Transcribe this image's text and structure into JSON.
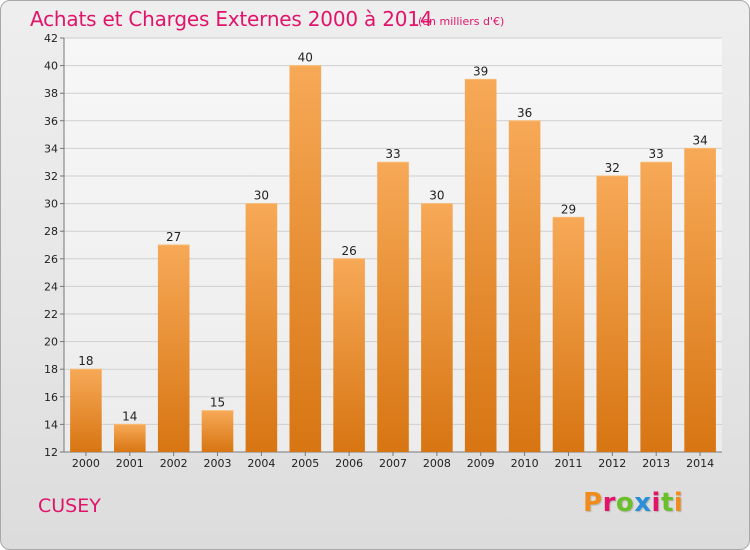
{
  "header": {
    "title": "Achats et Charges Externes 2000 à 2014",
    "units": "(en milliers d'€)"
  },
  "footer": {
    "commune": "CUSEY",
    "logo_text": "Proxiti",
    "logo_colors": [
      "#f08c1e",
      "#e0156a",
      "#6bbf2a",
      "#2a8fd6",
      "#e0156a",
      "#6bbf2a",
      "#f08c1e"
    ]
  },
  "colors": {
    "bar_top": "#f7a957",
    "bar_bottom": "#d77512",
    "grid": "#cfcfcf",
    "axis": "#777777",
    "text": "#222222",
    "accent": "#e0156a"
  },
  "chart_data": {
    "type": "bar",
    "title": "Achats et Charges Externes 2000 à 2014",
    "subtitle": "(en milliers d'€)",
    "xlabel": "",
    "ylabel": "",
    "categories": [
      "2000",
      "2001",
      "2002",
      "2003",
      "2004",
      "2005",
      "2006",
      "2007",
      "2008",
      "2009",
      "2010",
      "2011",
      "2012",
      "2013",
      "2014"
    ],
    "values": [
      18,
      14,
      27,
      15,
      30,
      40,
      26,
      33,
      30,
      39,
      36,
      29,
      32,
      33,
      34
    ],
    "ylim": [
      12,
      42
    ],
    "yticks": [
      12,
      14,
      16,
      18,
      20,
      22,
      24,
      26,
      28,
      30,
      32,
      34,
      36,
      38,
      40,
      42
    ],
    "grid": true,
    "data_labels": true
  }
}
